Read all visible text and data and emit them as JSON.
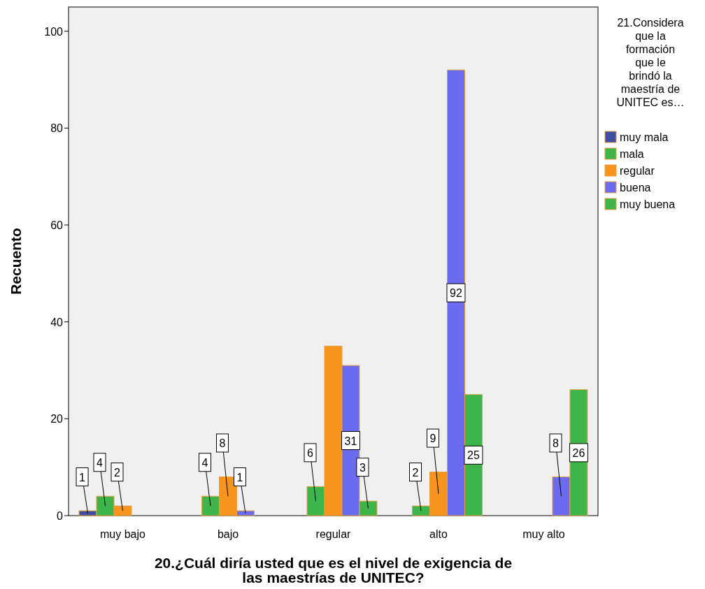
{
  "chart_data": {
    "type": "bar",
    "xlabel": "20.¿Cuál diría usted que es el nivel de exigencia de las maestrías de UNITEC?",
    "ylabel": "Recuento",
    "legend_title": "21.Considera que la formación que le brindó la maestría de UNITEC es…",
    "categories": [
      "muy bajo",
      "bajo",
      "regular",
      "alto",
      "muy alto"
    ],
    "series": [
      {
        "name": "muy mala",
        "color": "#3e4fa0",
        "values": [
          1,
          null,
          null,
          null,
          null
        ],
        "value_labels": [
          "1",
          null,
          null,
          null,
          null
        ]
      },
      {
        "name": "mala",
        "color": "#3db54a",
        "values": [
          4,
          4,
          6,
          2,
          null
        ],
        "value_labels": [
          "4",
          "4",
          "6",
          "2",
          null
        ]
      },
      {
        "name": "regular",
        "color": "#f7941d",
        "values": [
          2,
          8,
          35,
          9,
          null
        ],
        "value_labels": [
          "2",
          "8",
          null,
          "9",
          null
        ]
      },
      {
        "name": "buena",
        "color": "#6b6bf0",
        "values": [
          null,
          1,
          31,
          92,
          8
        ],
        "value_labels": [
          null,
          "1",
          "31",
          "92",
          "8"
        ]
      },
      {
        "name": "muy buena",
        "color": "#3db54a",
        "values": [
          null,
          null,
          3,
          25,
          26
        ],
        "value_labels": [
          null,
          null,
          "3",
          "25",
          "26"
        ]
      }
    ],
    "ylim": [
      0,
      105
    ],
    "yticks": [
      0,
      20,
      40,
      60,
      80,
      100
    ],
    "legend": "right"
  }
}
